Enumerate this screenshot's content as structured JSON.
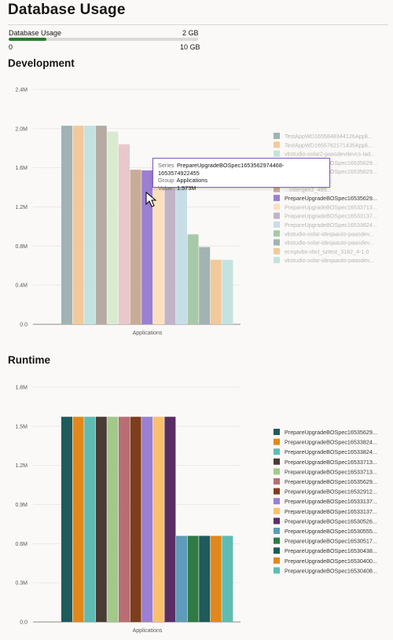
{
  "page": {
    "title": "Database Usage"
  },
  "usage": {
    "label": "Database Usage",
    "used": "2 GB",
    "min": "0",
    "max": "10 GB",
    "fraction": 0.2,
    "color": "#2a7d2a"
  },
  "charts": {
    "development": {
      "title": "Development"
    },
    "runtime": {
      "title": "Runtime"
    }
  },
  "tooltip": {
    "series_key": "Series",
    "series_val": "PrepareUpgradeBOSpec1653562974468-1653574922455",
    "group_key": "Group",
    "group_val": "Applications",
    "value_key": "Value",
    "value_val": "1.573M"
  },
  "chart_data": [
    {
      "type": "bar",
      "title": "Development",
      "categories": [
        "Applications"
      ],
      "xlabel": "",
      "ylabel": "",
      "ylim": [
        0,
        2400000
      ],
      "yticks": [
        "0.0",
        "0.4M",
        "0.8M",
        "1.2M",
        "1.6M",
        "2.0M",
        "2.4M"
      ],
      "grid": true,
      "legend": "right",
      "series": [
        {
          "name": "TestAppWD1655848344126Appli...",
          "values": [
            2030000
          ],
          "color": "#9fb3b5",
          "dim": true
        },
        {
          "name": "TestAppWD1655762171435Appli...",
          "values": [
            2030000
          ],
          "color": "#f2c99a",
          "dim": true
        },
        {
          "name": "vbstudio-solar2-paasdevdevcs-lad...",
          "values": [
            2030000
          ],
          "color": "#c3e3e0",
          "dim": true
        },
        {
          "name": "PrepareUpgradeBOSpec16535629...",
          "values": [
            2030000
          ],
          "color": "#b5aba2",
          "dim": true
        },
        {
          "name": "PrepareUpgradeBOSpec16535629...",
          "values": [
            1970000
          ],
          "color": "#d9eacf",
          "dim": true
        },
        {
          "name": "...vstergen2_495...",
          "values": [
            1840000
          ],
          "color": "#e8c8cb",
          "dim": true
        },
        {
          "name": "...vstergen2_495...",
          "values": [
            1580000
          ],
          "color": "#c9ab99",
          "dim": true
        },
        {
          "name": "PrepareUpgradeBOSpec16535629...",
          "values": [
            1573000
          ],
          "color": "#9b7fd0",
          "dim": false
        },
        {
          "name": "PrepareUpgradeBOSpec16533713...",
          "values": [
            1580000
          ],
          "color": "#fde0bd",
          "dim": true
        },
        {
          "name": "PrepareUpgradeBOSpec16533137...",
          "values": [
            1580000
          ],
          "color": "#c2b4c8",
          "dim": true
        },
        {
          "name": "PrepareUpgradeBOSpec16533824...",
          "values": [
            1580000
          ],
          "color": "#c7dee6",
          "dim": true
        },
        {
          "name": "vbstudio-solar-ideqaauto-paasdev...",
          "values": [
            920000
          ],
          "color": "#a7c9a9",
          "dim": true
        },
        {
          "name": "vbstudio-solar-ideqaauto-paasdev...",
          "values": [
            790000
          ],
          "color": "#a2b3b3",
          "dim": true
        },
        {
          "name": "ecrqavbs-vbcl_sztest_3182_4-1.0",
          "values": [
            660000
          ],
          "color": "#f2c99a",
          "dim": true
        },
        {
          "name": "vbstudio-solar-ideqaauto-paasdev...",
          "values": [
            660000
          ],
          "color": "#c3e3e0",
          "dim": true
        }
      ]
    },
    {
      "type": "bar",
      "title": "Runtime",
      "categories": [
        "Applications"
      ],
      "xlabel": "",
      "ylabel": "",
      "ylim": [
        0,
        1800000
      ],
      "yticks": [
        "0.0",
        "0.3M",
        "0.6M",
        "0.9M",
        "1.2M",
        "1.5M",
        "1.8M"
      ],
      "grid": true,
      "legend": "right",
      "series": [
        {
          "name": "PrepareUpgradeBOSpec16535629...",
          "values": [
            1573000
          ],
          "color": "#1f5a5c"
        },
        {
          "name": "PrepareUpgradeBOSpec16533824...",
          "values": [
            1573000
          ],
          "color": "#e0881c"
        },
        {
          "name": "PrepareUpgradeBOSpec16533824...",
          "values": [
            1573000
          ],
          "color": "#5fbcb3"
        },
        {
          "name": "PrepareUpgradeBOSpec16533713...",
          "values": [
            1573000
          ],
          "color": "#4b3b35"
        },
        {
          "name": "PrepareUpgradeBOSpec16533713...",
          "values": [
            1573000
          ],
          "color": "#a2c98a"
        },
        {
          "name": "PrepareUpgradeBOSpec16535629...",
          "values": [
            1573000
          ],
          "color": "#b96d74"
        },
        {
          "name": "PrepareUpgradeBOSpec16532912...",
          "values": [
            1573000
          ],
          "color": "#7e3e1e"
        },
        {
          "name": "PrepareUpgradeBOSpec16533137...",
          "values": [
            1573000
          ],
          "color": "#9b7fd0"
        },
        {
          "name": "PrepareUpgradeBOSpec16533137...",
          "values": [
            1573000
          ],
          "color": "#fbc06d"
        },
        {
          "name": "PrepareUpgradeBOSpec16530526...",
          "values": [
            1573000
          ],
          "color": "#5a2e63"
        },
        {
          "name": "PrepareUpgradeBOSpec16530555...",
          "values": [
            660000
          ],
          "color": "#5f9bba"
        },
        {
          "name": "PrepareUpgradeBOSpec16530517...",
          "values": [
            660000
          ],
          "color": "#2f7a45"
        },
        {
          "name": "PrepareUpgradeBOSpec16530438...",
          "values": [
            660000
          ],
          "color": "#1f5a5c"
        },
        {
          "name": "PrepareUpgradeBOSpec16530400...",
          "values": [
            660000
          ],
          "color": "#e0881c"
        },
        {
          "name": "PrepareUpgradeBOSpec16530408...",
          "values": [
            660000
          ],
          "color": "#5fbcb3"
        }
      ]
    }
  ]
}
